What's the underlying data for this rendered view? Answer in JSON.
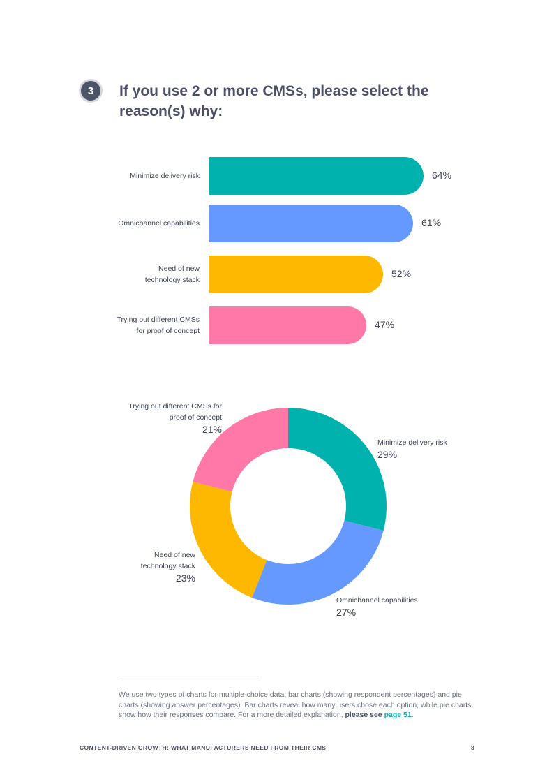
{
  "question": {
    "number": "3",
    "title": "If you use 2 or more CMSs, please select the reason(s) why:"
  },
  "chart_data": [
    {
      "type": "bar",
      "orientation": "horizontal",
      "categories": [
        "Minimize delivery risk",
        "Omnichannel capabilities",
        "Need of new technology stack",
        "Trying out different CMSs for proof of concept"
      ],
      "label_lines": [
        [
          "Minimize delivery risk"
        ],
        [
          "Omnichannel capabilities"
        ],
        [
          "Need of new",
          "technology stack"
        ],
        [
          "Trying out different CMSs",
          "for proof of concept"
        ]
      ],
      "values": [
        64,
        61,
        52,
        47
      ],
      "value_labels": [
        "64%",
        "61%",
        "52%",
        "47%"
      ],
      "colors": [
        "#00b2ad",
        "#6699ff",
        "#ffb800",
        "#ff78a8"
      ],
      "unit": "%"
    },
    {
      "type": "pie",
      "style": "donut",
      "categories": [
        "Minimize delivery risk",
        "Omnichannel capabilities",
        "Need of new technology stack",
        "Trying out different CMSs for proof of concept"
      ],
      "label_lines": [
        [
          "Minimize delivery risk"
        ],
        [
          "Omnichannel capabilities"
        ],
        [
          "Need of new",
          "technology stack"
        ],
        [
          "Trying out different CMSs for",
          "proof of concept"
        ]
      ],
      "values": [
        29,
        27,
        23,
        21
      ],
      "value_labels": [
        "29%",
        "27%",
        "23%",
        "21%"
      ],
      "colors": [
        "#00b2ad",
        "#6699ff",
        "#ffb800",
        "#ff78a8"
      ]
    }
  ],
  "footnote": {
    "text": "We use two types of charts for multiple-choice data: bar charts (showing respondent percentages) and pie charts (showing answer percentages). Bar charts reveal how many users chose each option, while pie charts show how their responses compare. For a more detailed explanation, ",
    "bold": "please see",
    "link": "page 51",
    "end": "."
  },
  "footer": {
    "title": "CONTENT-DRIVEN GROWTH: WHAT MANUFACTURERS NEED FROM THEIR CMS",
    "page": "8"
  }
}
